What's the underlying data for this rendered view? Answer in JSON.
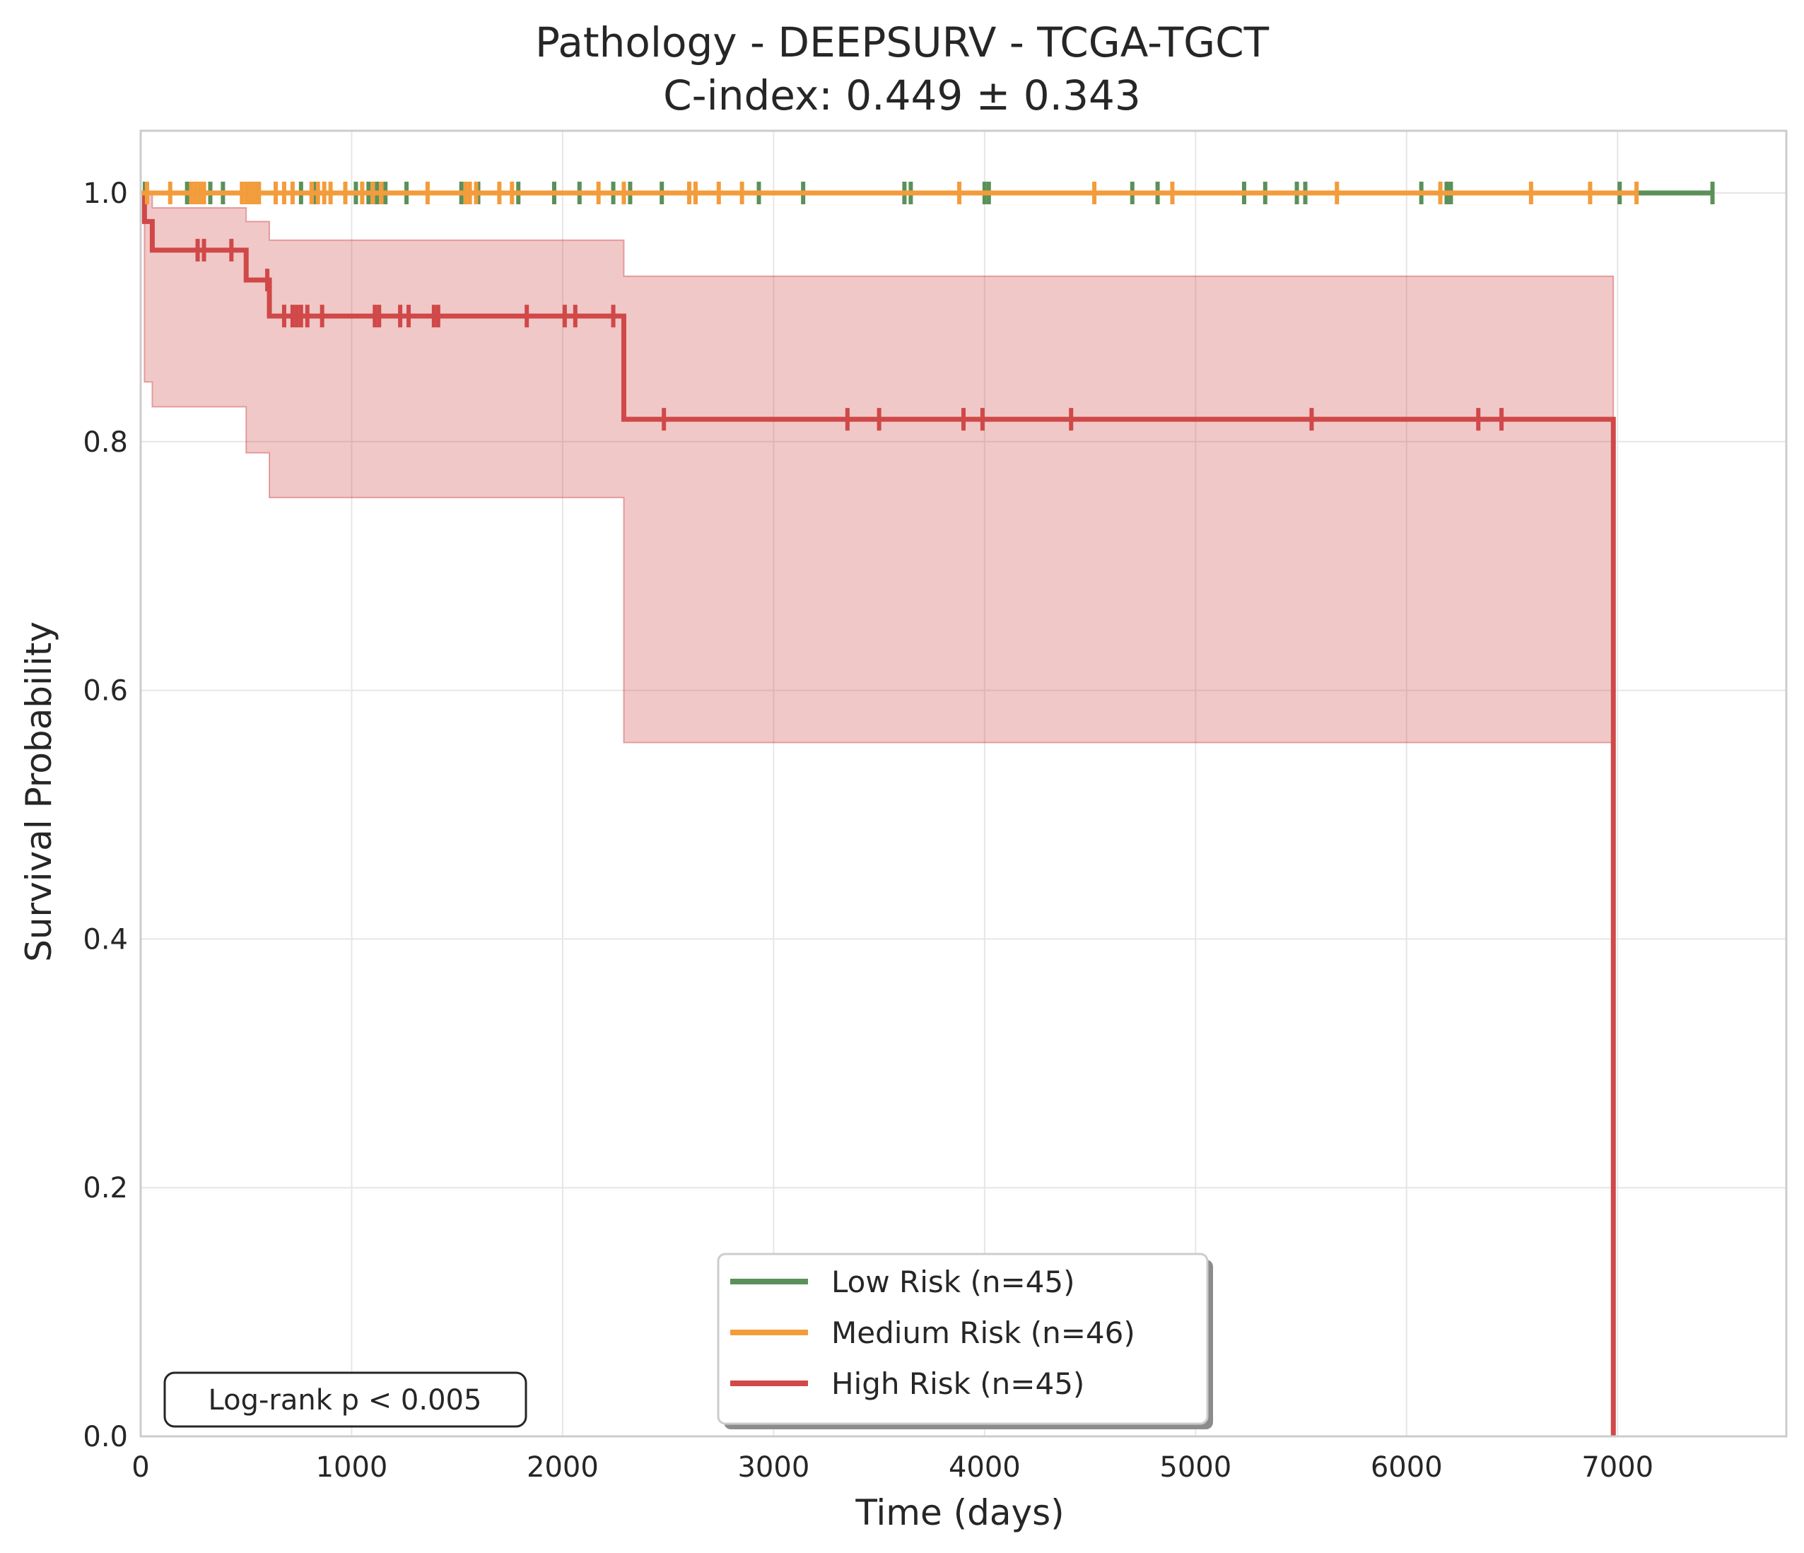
{
  "chart_data": {
    "type": "line",
    "title": "Pathology - DEEPSURV - TCGA-TGCT",
    "subtitle": "C-index: 0.449 ± 0.343",
    "xlabel": "Time (days)",
    "ylabel": "Survival Probability",
    "xlim": [
      0,
      7800
    ],
    "ylim": [
      0,
      1.05
    ],
    "xticks": [
      0,
      1000,
      2000,
      3000,
      4000,
      5000,
      6000,
      7000
    ],
    "yticks": [
      0.0,
      0.2,
      0.4,
      0.6,
      0.8,
      1.0
    ],
    "xtick_labels": [
      "0",
      "1000",
      "2000",
      "3000",
      "4000",
      "5000",
      "6000",
      "7000"
    ],
    "ytick_labels": [
      "0.0",
      "0.2",
      "0.4",
      "0.6",
      "0.8",
      "1.0"
    ],
    "grid": true,
    "legend_position": "bottom-center",
    "annotation": "Log-rank p < 0.005",
    "series": [
      {
        "name": "Low Risk (n=45)",
        "color": "#5a9159",
        "steps": [
          [
            0,
            1.0
          ],
          [
            7450,
            1.0
          ]
        ],
        "censor_times": [
          20,
          220,
          330,
          390,
          520,
          560,
          760,
          830,
          1020,
          1080,
          1120,
          1160,
          1260,
          1520,
          1600,
          1790,
          1960,
          2080,
          2240,
          2290,
          2320,
          2470,
          2600,
          2930,
          3140,
          3620,
          3650,
          4000,
          4020,
          4700,
          4820,
          5230,
          5330,
          5480,
          5520,
          6070,
          6190,
          6210,
          7010,
          7450
        ]
      },
      {
        "name": "Medium Risk (n=46)",
        "color": "#f39c3b",
        "steps": [
          [
            0,
            1.0
          ],
          [
            7100,
            1.0
          ]
        ],
        "censor_times": [
          30,
          140,
          240,
          260,
          280,
          300,
          480,
          500,
          520,
          540,
          560,
          640,
          680,
          720,
          810,
          840,
          870,
          900,
          970,
          1050,
          1100,
          1140,
          1360,
          1540,
          1560,
          1590,
          1700,
          1760,
          2170,
          2290,
          2600,
          2630,
          2740,
          2850,
          3880,
          4520,
          4890,
          5670,
          6160,
          6590,
          6870,
          7090
        ]
      },
      {
        "name": "High Risk (n=45)",
        "color": "#d04848",
        "steps": [
          [
            0,
            1.0
          ],
          [
            18,
            0.977
          ],
          [
            55,
            0.954
          ],
          [
            500,
            0.93
          ],
          [
            610,
            0.901
          ],
          [
            2290,
            0.818
          ],
          [
            6980,
            0.0
          ]
        ],
        "ci_upper": [
          [
            0,
            1.0
          ],
          [
            55,
            0.988
          ],
          [
            500,
            0.977
          ],
          [
            610,
            0.962
          ],
          [
            2290,
            0.933
          ],
          [
            6980,
            0.933
          ]
        ],
        "ci_lower": [
          [
            0,
            1.0
          ],
          [
            18,
            0.848
          ],
          [
            55,
            0.828
          ],
          [
            500,
            0.791
          ],
          [
            610,
            0.755
          ],
          [
            2290,
            0.558
          ],
          [
            6980,
            0.558
          ]
        ],
        "censor_times": [
          270,
          300,
          430,
          600,
          680,
          720,
          740,
          760,
          790,
          860,
          1110,
          1130,
          1230,
          1270,
          1390,
          1410,
          1830,
          2010,
          2060,
          2240,
          2480,
          3350,
          3500,
          3900,
          3990,
          4410,
          5550,
          6340,
          6450
        ]
      }
    ]
  }
}
